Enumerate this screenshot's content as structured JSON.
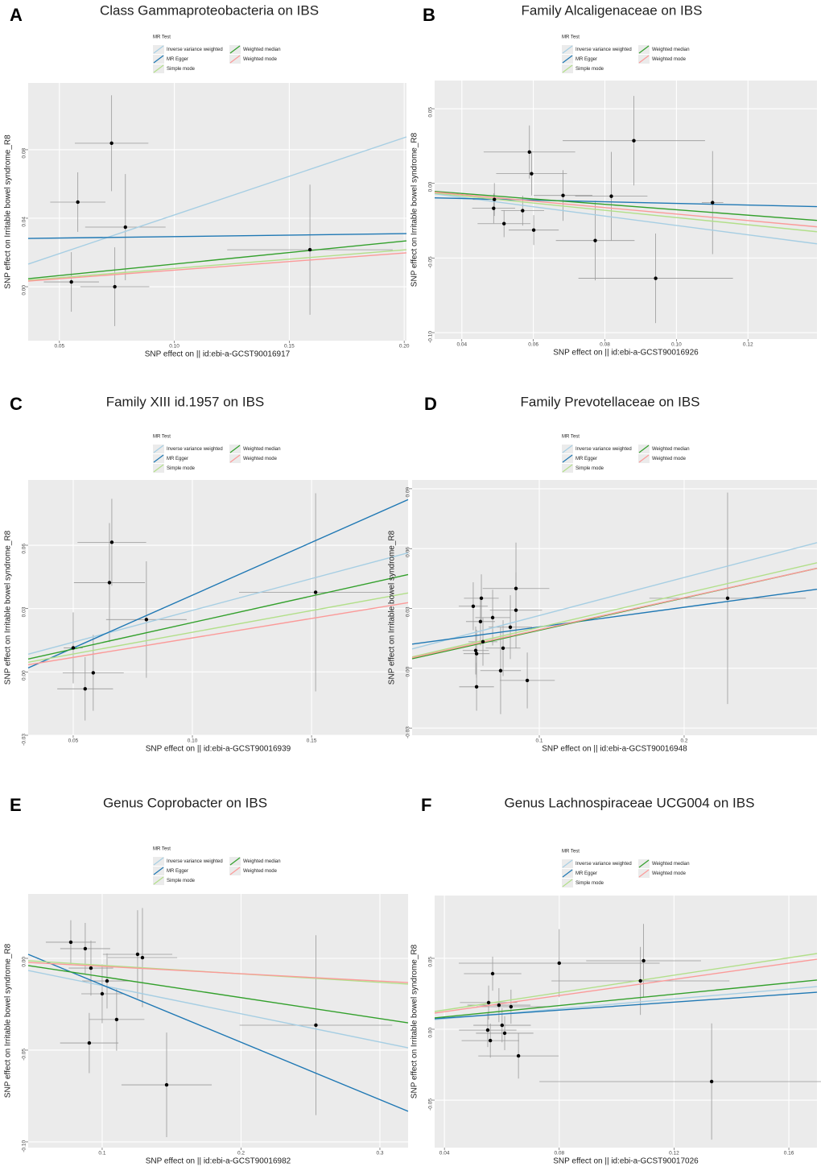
{
  "chart_data": [
    {
      "type": "scatter",
      "panel": "A",
      "title": "Class Gammaproteobacteria on IBS",
      "x_label": "SNP effect on  || id:ebi-a-GCST90016917",
      "y_label": "SNP effect on Irritable bowel syndrome_R8",
      "legend_title": "MR Test",
      "x": [
        0.058,
        0.0727,
        0.0787,
        0.0552,
        0.0741,
        0.159
      ],
      "values": [
        0.0494,
        0.0838,
        0.0348,
        0.0028,
        0.0,
        0.0216
      ],
      "x_err": [
        0.012,
        0.016,
        0.0175,
        0.012,
        0.015,
        0.036
      ],
      "y_err": [
        0.0174,
        0.028,
        0.031,
        0.0174,
        0.023,
        0.038
      ],
      "lines": [
        {
          "name": "Inverse variance weighted",
          "color": "#a6cee3",
          "values": [
            0.0132,
            0.0875
          ]
        },
        {
          "name": "MR Egger",
          "color": "#1f78b4",
          "values": [
            0.0282,
            0.031
          ]
        },
        {
          "name": "Simple mode",
          "color": "#b2df8a",
          "values": [
            0.0038,
            0.0216
          ]
        },
        {
          "name": "Weighted median",
          "color": "#33a02c",
          "values": [
            0.0047,
            0.0268
          ]
        },
        {
          "name": "Weighted mode",
          "color": "#fb9a99",
          "values": [
            0.0033,
            0.0198
          ]
        }
      ],
      "xlim": [
        0.0364,
        0.201
      ],
      "ylim": [
        -0.0315,
        0.119
      ],
      "xticks": [
        0.05,
        {
          "value": 0.1,
          "label": "0.10"
        },
        0.15,
        {
          "value": 0.2,
          "label": "0.20"
        }
      ],
      "yticks": [
        {
          "value": 0,
          "label": "0.00"
        },
        0.04,
        0.08
      ],
      "grid": true
    },
    {
      "type": "scatter",
      "panel": "B",
      "title": "Family Alcaligenaceae on IBS",
      "x_label": "SNP effect on  || id:ebi-a-GCST90016926",
      "y_label": "SNP effect on Irritable bowel syndrome_R8",
      "legend_title": "MR Test",
      "x": [
        0.0589,
        0.0595,
        0.0491,
        0.0489,
        0.0518,
        0.057,
        0.0601,
        0.0683,
        0.0773,
        0.0818,
        0.0881,
        0.0942,
        0.1101
      ],
      "values": [
        0.021,
        0.0065,
        -0.0108,
        -0.0167,
        -0.027,
        -0.0183,
        -0.0313,
        -0.0081,
        -0.0383,
        -0.0086,
        0.0286,
        -0.0636,
        -0.0129
      ],
      "x_err": [
        0.0128,
        0.0099,
        0.006,
        0.006,
        0.0074,
        0.006,
        0.007,
        0.0082,
        0.011,
        0.0101,
        0.0199,
        0.0216,
        0.003
      ],
      "y_err": [
        0.0178,
        0.0146,
        0.011,
        0.01,
        0.009,
        0.01,
        0.01,
        0.017,
        0.0267,
        0.0297,
        0.03,
        0.03,
        0.0345
      ],
      "lines": [
        {
          "name": "Inverse variance weighted",
          "color": "#a6cee3",
          "values": [
            -0.007,
            -0.0405
          ]
        },
        {
          "name": "MR Egger",
          "color": "#1f78b4",
          "values": [
            -0.0097,
            -0.0156
          ]
        },
        {
          "name": "Simple mode",
          "color": "#b2df8a",
          "values": [
            -0.0065,
            -0.0324
          ]
        },
        {
          "name": "Weighted median",
          "color": "#33a02c",
          "values": [
            -0.0054,
            -0.0248
          ]
        },
        {
          "name": "Weighted mode",
          "color": "#fb9a99",
          "values": [
            -0.0059,
            -0.0291
          ]
        }
      ],
      "xlim": [
        0.0324,
        0.1393
      ],
      "ylim": [
        -0.1043,
        0.0689
      ],
      "xticks": [
        0.04,
        0.06,
        0.08,
        {
          "value": 0.1,
          "label": "0.10"
        },
        0.12
      ],
      "yticks": [
        {
          "value": -0.1,
          "label": "-0.10"
        },
        -0.05,
        {
          "value": 0,
          "label": "0.00"
        },
        0.05
      ],
      "grid": true
    },
    {
      "type": "scatter",
      "panel": "C",
      "title": "Family XIII id.1957 on IBS",
      "x_label": "SNP effect on  || id:ebi-a-GCST90016939",
      "y_label": "SNP effect on Irritable bowel syndrome_R8",
      "legend_title": "MR Test",
      "x": [
        0.05,
        0.0662,
        0.0652,
        0.0807,
        0.0584,
        0.055,
        0.1517
      ],
      "values": [
        0.0114,
        0.0614,
        0.0423,
        0.0248,
        -0.0004,
        -0.008,
        0.0377
      ],
      "x_err": [
        0.004,
        0.0144,
        0.0149,
        0.0169,
        0.0128,
        0.0117,
        0.0321
      ],
      "y_err": [
        0.0168,
        0.0206,
        0.0282,
        0.0276,
        0.018,
        0.015,
        0.0469
      ],
      "lines": [
        {
          "name": "Inverse variance weighted",
          "color": "#a6cee3",
          "values": [
            0.0084,
            0.0564
          ]
        },
        {
          "name": "MR Egger",
          "color": "#1f78b4",
          "values": [
            0.0019,
            0.0816
          ]
        },
        {
          "name": "Simple mode",
          "color": "#b2df8a",
          "values": [
            0.0046,
            0.0374
          ]
        },
        {
          "name": "Weighted median",
          "color": "#33a02c",
          "values": [
            0.0061,
            0.0461
          ]
        },
        {
          "name": "Weighted mode",
          "color": "#fb9a99",
          "values": [
            0.0034,
            0.0328
          ]
        }
      ],
      "xlim": [
        0.0311,
        0.1905
      ],
      "ylim": [
        -0.03,
        0.0909
      ],
      "xticks": [
        0.05,
        {
          "value": 0.1,
          "label": "0.10"
        },
        0.15
      ],
      "yticks": [
        -0.03,
        {
          "value": 0,
          "label": "0.00"
        },
        0.03,
        0.06
      ],
      "grid": true
    },
    {
      "type": "scatter",
      "panel": "D",
      "title": "Family Prevotellaceae on IBS",
      "x_label": "SNP effect on  || id:ebi-a-GCST90016948",
      "y_label": "SNP effect on Irritable bowel syndrome_R8",
      "legend_title": "MR Test",
      "x": [
        0.0544,
        0.06,
        0.0594,
        0.0678,
        0.0611,
        0.0567,
        0.0561,
        0.0839,
        0.0839,
        0.08,
        0.075,
        0.0733,
        0.0567,
        0.0917,
        0.23
      ],
      "values": [
        0.0311,
        0.0351,
        0.0234,
        0.0254,
        0.0133,
        0.0073,
        0.0089,
        0.04,
        0.0291,
        0.0206,
        0.0101,
        -0.0012,
        -0.0093,
        -0.0061,
        0.0351
      ],
      "x_err": [
        0.01,
        0.012,
        0.01,
        0.012,
        0.01,
        0.009,
        0.009,
        0.023,
        0.018,
        0.015,
        0.012,
        0.014,
        0.012,
        0.019,
        0.054
      ],
      "y_err": [
        0.012,
        0.012,
        0.012,
        0.014,
        0.012,
        0.012,
        0.012,
        0.023,
        0.019,
        0.016,
        0.014,
        0.0218,
        0.012,
        0.014,
        0.053
      ],
      "lines": [
        {
          "name": "Inverse variance weighted",
          "color": "#a6cee3",
          "values": [
            0.0097,
            0.063
          ]
        },
        {
          "name": "MR Egger",
          "color": "#1f78b4",
          "values": [
            0.0121,
            0.0396
          ]
        },
        {
          "name": "Simple mode",
          "color": "#b2df8a",
          "values": [
            0.0057,
            0.0529
          ]
        },
        {
          "name": "Weighted median",
          "color": "#33a02c",
          "values": [
            0.0048,
            0.0501
          ]
        },
        {
          "name": "Weighted mode",
          "color": "#fb9a99",
          "values": [
            0.0053,
            0.0501
          ]
        }
      ],
      "xlim": [
        0.0122,
        0.2917
      ],
      "ylim": [
        -0.0336,
        0.0944
      ],
      "xticks": [
        0.1,
        0.2
      ],
      "yticks": [
        -0.03,
        {
          "value": 0,
          "label": "0.00"
        },
        0.03,
        0.06,
        0.09
      ],
      "grid": true
    },
    {
      "type": "scatter",
      "panel": "E",
      "title": "Genus Coprobacter on IBS",
      "x_label": "SNP effect on  || id:ebi-a-GCST90016982",
      "y_label": "SNP effect on Irritable bowel syndrome_R8",
      "legend_title": "MR Test",
      "x": [
        0.0774,
        0.0878,
        0.0919,
        0.1035,
        0.1,
        0.1104,
        0.0907,
        0.1255,
        0.129,
        0.1464,
        0.2539
      ],
      "values": [
        0.0088,
        0.0053,
        -0.0053,
        -0.0123,
        -0.0193,
        -0.0333,
        -0.0461,
        0.0022,
        0.0004,
        -0.0689,
        -0.0364
      ],
      "x_err": [
        0.018,
        0.018,
        0.016,
        0.018,
        0.015,
        0.02,
        0.021,
        0.025,
        0.025,
        0.0325,
        0.055
      ],
      "y_err": [
        0.012,
        0.014,
        0.015,
        0.015,
        0.016,
        0.017,
        0.0164,
        0.024,
        0.027,
        0.0285,
        0.049
      ],
      "lines": [
        {
          "name": "Inverse variance weighted",
          "color": "#a6cee3",
          "values": [
            -0.0066,
            -0.0487
          ]
        },
        {
          "name": "MR Egger",
          "color": "#1f78b4",
          "values": [
            0.0022,
            -0.0833
          ]
        },
        {
          "name": "Simple mode",
          "color": "#b2df8a",
          "values": [
            -0.0013,
            -0.014
          ]
        },
        {
          "name": "Weighted median",
          "color": "#33a02c",
          "values": [
            -0.0039,
            -0.0351
          ]
        },
        {
          "name": "Weighted mode",
          "color": "#fb9a99",
          "values": [
            -0.0022,
            -0.0132
          ]
        }
      ],
      "xlim": [
        0.0467,
        0.3203
      ],
      "ylim": [
        -0.1031,
        0.0351
      ],
      "xticks": [
        0.1,
        0.2,
        0.3
      ],
      "yticks": [
        {
          "value": -0.1,
          "label": "-0.10"
        },
        -0.05,
        {
          "value": 0,
          "label": "0.00"
        }
      ],
      "grid": true
    },
    {
      "type": "scatter",
      "panel": "F",
      "title": "Genus Lachnospiraceae UCG004 on IBS",
      "x_label": "SNP effect on  || id:ebi-a-GCST90017026",
      "y_label": "SNP effect on Irritable bowel syndrome_R8",
      "legend_title": "MR Test",
      "x": [
        0.0568,
        0.0554,
        0.059,
        0.0632,
        0.0601,
        0.0551,
        0.061,
        0.056,
        0.0658,
        0.08,
        0.1094,
        0.1083,
        0.1331
      ],
      "values": [
        0.0392,
        0.0188,
        0.017,
        0.0159,
        0.0028,
        -0.0006,
        -0.0028,
        -0.008,
        -0.0188,
        0.0466,
        0.0483,
        0.0341,
        -0.0369
      ],
      "x_err": [
        0.01,
        0.01,
        0.011,
        0.012,
        0.01,
        0.01,
        0.01,
        0.01,
        0.014,
        0.035,
        0.02,
        0.031,
        0.06
      ],
      "y_err": [
        0.012,
        0.012,
        0.012,
        0.012,
        0.012,
        0.012,
        0.012,
        0.012,
        0.016,
        0.024,
        0.026,
        0.024,
        0.041
      ],
      "lines": [
        {
          "name": "Inverse variance weighted",
          "color": "#a6cee3",
          "values": [
            0.0068,
            0.0301
          ]
        },
        {
          "name": "MR Egger",
          "color": "#1f78b4",
          "values": [
            0.0074,
            0.0261
          ]
        },
        {
          "name": "Simple mode",
          "color": "#b2df8a",
          "values": [
            0.0125,
            0.0534
          ]
        },
        {
          "name": "Weighted median",
          "color": "#33a02c",
          "values": [
            0.008,
            0.0347
          ]
        },
        {
          "name": "Weighted mode",
          "color": "#fb9a99",
          "values": [
            0.0114,
            0.0494
          ]
        }
      ],
      "xlim": [
        0.0366,
        0.1698
      ],
      "ylim": [
        -0.0835,
        0.0943
      ],
      "xticks": [
        0.04,
        0.08,
        0.12,
        0.16
      ],
      "yticks": [
        -0.05,
        {
          "value": 0,
          "label": "0.00"
        },
        0.05
      ],
      "grid": true
    }
  ]
}
